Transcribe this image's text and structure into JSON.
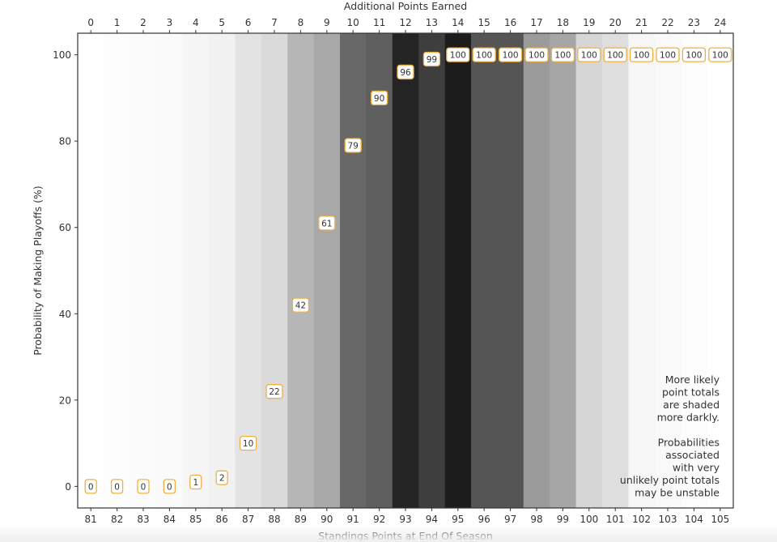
{
  "chart_data": {
    "type": "scatter",
    "title": "",
    "xlabel": "Standings Points at End Of Season",
    "x2label": "Additional Points Earned",
    "ylabel": "Probability of Making Playoffs (%)",
    "xlim": [
      80.5,
      105.5
    ],
    "ylim": [
      -5,
      105
    ],
    "grid": false,
    "x": [
      81,
      82,
      83,
      84,
      85,
      86,
      87,
      88,
      89,
      90,
      91,
      92,
      93,
      94,
      95,
      96,
      97,
      98,
      99,
      100,
      101,
      102,
      103,
      104,
      105
    ],
    "x2": [
      0,
      1,
      2,
      3,
      4,
      5,
      6,
      7,
      8,
      9,
      10,
      11,
      12,
      13,
      14,
      15,
      16,
      17,
      18,
      19,
      20,
      21,
      22,
      23,
      24
    ],
    "values": [
      0,
      0,
      0,
      0,
      1,
      2,
      10,
      22,
      42,
      61,
      79,
      90,
      96,
      99,
      100,
      100,
      100,
      100,
      100,
      100,
      100,
      100,
      100,
      100,
      100
    ],
    "labels": [
      "0",
      "0",
      "0",
      "0",
      "1",
      "2",
      "10",
      "22",
      "42",
      "61",
      "79",
      "90",
      "96",
      "99",
      "100",
      "100",
      "100",
      "100",
      "100",
      "100",
      "100",
      "100",
      "100",
      "100",
      "100"
    ],
    "band_shades": [
      "#ffffff",
      "#fdfdfd",
      "#fbfbfb",
      "#fafafa",
      "#f5f5f5",
      "#f1f1f1",
      "#e3e3e3",
      "#dadada",
      "#b6b6b6",
      "#a8a8a8",
      "#686868",
      "#5f5f5f",
      "#242424",
      "#3e3e3e",
      "#1c1c1c",
      "#555555",
      "#555555",
      "#9b9b9b",
      "#a6a6a6",
      "#d6d6d6",
      "#dedede",
      "#f6f6f6",
      "#f9f9f9",
      "#fcfcfc",
      "#ffffff"
    ],
    "yticks": [
      0,
      20,
      40,
      60,
      80,
      100
    ],
    "ytick_labels": [
      "0",
      "20",
      "40",
      "60",
      "80",
      "100"
    ],
    "label_border_color": "#f0b040",
    "annotation": {
      "lines": [
        "More likely",
        "point totals",
        "are shaded",
        "more darkly.",
        "",
        "Probabilities",
        "associated",
        "with very",
        "unlikely point totals",
        "may be unstable"
      ],
      "placement": "bottom-right"
    }
  }
}
